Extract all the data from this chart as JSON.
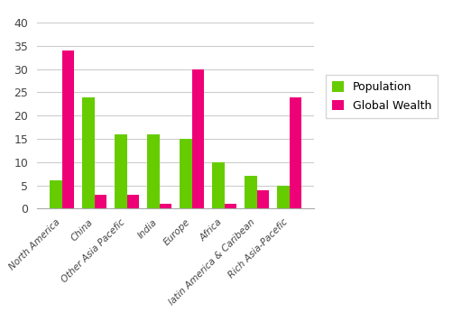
{
  "categories": [
    "North America",
    "China",
    "Other Asia Pacefic",
    "India",
    "Europe",
    "Africa",
    "latin America & Caribean",
    "Rich Asia-Pacefic"
  ],
  "population": [
    6,
    24,
    16,
    16,
    15,
    10,
    7,
    5
  ],
  "global_wealth": [
    34,
    3,
    3,
    1,
    30,
    1,
    4,
    24
  ],
  "pop_color": "#66cc00",
  "wealth_color": "#ee0077",
  "ylim": [
    0,
    40
  ],
  "yticks": [
    0,
    5,
    10,
    15,
    20,
    25,
    30,
    35,
    40
  ],
  "legend_pop": "Population",
  "legend_wealth": "Global Wealth",
  "bg_color": "#ffffff",
  "bar_width": 0.38
}
